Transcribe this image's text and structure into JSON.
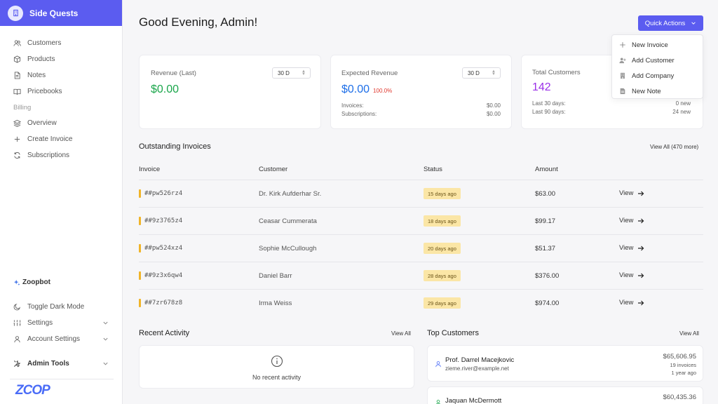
{
  "brand": {
    "name": "Side Quests"
  },
  "sidebar": {
    "items": [
      {
        "label": "Customers",
        "icon": "users-icon"
      },
      {
        "label": "Products",
        "icon": "box-icon"
      },
      {
        "label": "Notes",
        "icon": "file-icon"
      },
      {
        "label": "Pricebooks",
        "icon": "book-icon"
      }
    ],
    "billing_label": "Billing",
    "billing_items": [
      {
        "label": "Overview",
        "icon": "layers-icon"
      },
      {
        "label": "Create Invoice",
        "icon": "plus-icon"
      },
      {
        "label": "Subscriptions",
        "icon": "refresh-icon"
      }
    ],
    "zoopbot": "Zoopbot",
    "dark_mode": "Toggle Dark Mode",
    "settings": "Settings",
    "account_settings": "Account Settings",
    "admin_tools": "Admin Tools",
    "logo_text": "ZCOP"
  },
  "header": {
    "greeting": "Good Evening, Admin!",
    "quick_actions": "Quick Actions",
    "menu": [
      "New Invoice",
      "Add Customer",
      "Add Company",
      "New Note"
    ]
  },
  "cards": {
    "revenue": {
      "label": "Revenue (Last)",
      "period": "30 D",
      "value": "$0.00"
    },
    "expected": {
      "label": "Expected Revenue",
      "period": "30 D",
      "value": "$0.00",
      "pct": "100.0%",
      "invoices_label": "Invoices:",
      "invoices_value": "$0.00",
      "subs_label": "Subscriptions:",
      "subs_value": "$0.00"
    },
    "customers": {
      "label": "Total Customers",
      "value": "142",
      "last30_label": "Last 30 days:",
      "last30_value": "0 new",
      "last90_label": "Last 90 days:",
      "last90_value": "24 new"
    }
  },
  "invoices": {
    "title": "Outstanding Invoices",
    "view_all": "View All (470 more)",
    "columns": [
      "Invoice",
      "Customer",
      "Status",
      "Amount"
    ],
    "rows": [
      {
        "id": "##pw526rz4",
        "customer": "Dr. Kirk Aufderhar Sr.",
        "status": "15 days ago",
        "amount": "$63.00",
        "action": "View"
      },
      {
        "id": "##9z3765z4",
        "customer": "Ceasar Cummerata",
        "status": "18 days ago",
        "amount": "$99.17",
        "action": "View"
      },
      {
        "id": "##pw524xz4",
        "customer": "Sophie McCullough",
        "status": "20 days ago",
        "amount": "$51.37",
        "action": "View"
      },
      {
        "id": "##9z3x6qw4",
        "customer": "Daniel Barr",
        "status": "28 days ago",
        "amount": "$376.00",
        "action": "View"
      },
      {
        "id": "##7zr678z8",
        "customer": "Irma Weiss",
        "status": "29 days ago",
        "amount": "$974.00",
        "action": "View"
      }
    ]
  },
  "recent_activity": {
    "title": "Recent Activity",
    "view_all": "View All",
    "empty": "No recent activity"
  },
  "top_customers": {
    "title": "Top Customers",
    "view_all": "View All",
    "items": [
      {
        "name": "Prof. Darrel Macejkovic",
        "email": "zieme.river@example.net",
        "amount": "$65,606.95",
        "invoices": "19 invoices",
        "age": "1 year ago"
      },
      {
        "name": "Jaquan McDermott",
        "amount": "$60,435.36"
      }
    ]
  },
  "colors": {
    "accent": "#5b5cf0",
    "revenue_green": "#1aa64b",
    "expected_blue": "#1e6fe8",
    "customers_purple": "#9b30e8",
    "status_bar": "#f0b429",
    "badge_bg": "#fbe6a6"
  }
}
